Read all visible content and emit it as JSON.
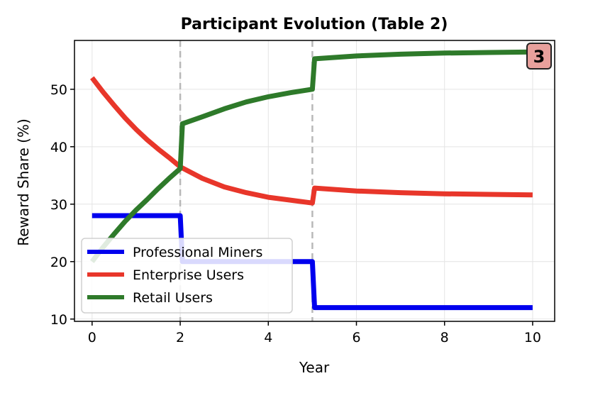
{
  "chart_data": {
    "type": "line",
    "title": "Participant Evolution (Table 2)",
    "xlabel": "Year",
    "ylabel": "Reward Share (%)",
    "xlim": [
      -0.4,
      10.5
    ],
    "ylim": [
      9.6,
      58.5
    ],
    "x_ticks": [
      0,
      2,
      4,
      6,
      8,
      10
    ],
    "y_ticks": [
      10,
      20,
      30,
      40,
      50
    ],
    "grid": true,
    "legend_position": "lower-left",
    "vertical_markers": [
      2,
      5
    ],
    "badge": "3",
    "badge_color": "#e8a09c",
    "series": [
      {
        "name": "Professional Miners",
        "color": "#0000ee",
        "points": [
          [
            0,
            28
          ],
          [
            1,
            28
          ],
          [
            2,
            28
          ],
          [
            2.05,
            20
          ],
          [
            3,
            20
          ],
          [
            4,
            20
          ],
          [
            5,
            20
          ],
          [
            5.05,
            12
          ],
          [
            6,
            12
          ],
          [
            7,
            12
          ],
          [
            8,
            12
          ],
          [
            9,
            12
          ],
          [
            10,
            12
          ]
        ]
      },
      {
        "name": "Enterprise Users",
        "color": "#e8362a",
        "points": [
          [
            0,
            52
          ],
          [
            0.25,
            49.5
          ],
          [
            0.5,
            47.2
          ],
          [
            0.75,
            45
          ],
          [
            1,
            43
          ],
          [
            1.25,
            41.2
          ],
          [
            1.5,
            39.6
          ],
          [
            1.75,
            38.1
          ],
          [
            2,
            36.5
          ],
          [
            2.5,
            34.5
          ],
          [
            3,
            33
          ],
          [
            3.5,
            32
          ],
          [
            4,
            31.2
          ],
          [
            4.5,
            30.7
          ],
          [
            5,
            30.2
          ],
          [
            5.05,
            32.8
          ],
          [
            6,
            32.3
          ],
          [
            7,
            32
          ],
          [
            8,
            31.8
          ],
          [
            9,
            31.7
          ],
          [
            10,
            31.6
          ]
        ]
      },
      {
        "name": "Retail Users",
        "color": "#2e7a2a",
        "points": [
          [
            0,
            20
          ],
          [
            0.25,
            22.5
          ],
          [
            0.5,
            24.8
          ],
          [
            0.75,
            27
          ],
          [
            1,
            29
          ],
          [
            1.25,
            30.8
          ],
          [
            1.5,
            32.7
          ],
          [
            1.75,
            34.5
          ],
          [
            2,
            36.2
          ],
          [
            2.05,
            44
          ],
          [
            2.5,
            45.2
          ],
          [
            3,
            46.6
          ],
          [
            3.5,
            47.8
          ],
          [
            4,
            48.7
          ],
          [
            4.5,
            49.4
          ],
          [
            5,
            50
          ],
          [
            5.05,
            55.3
          ],
          [
            6,
            55.8
          ],
          [
            7,
            56.1
          ],
          [
            8,
            56.3
          ],
          [
            9,
            56.4
          ],
          [
            10,
            56.5
          ]
        ]
      }
    ]
  }
}
